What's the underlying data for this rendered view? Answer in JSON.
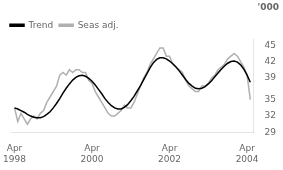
{
  "chart_data": {
    "type": "line",
    "ylabel": "'000",
    "x": [
      0,
      1,
      2,
      3,
      4,
      5,
      6,
      7,
      8,
      9,
      10,
      11,
      12,
      13,
      14,
      15,
      16,
      17,
      18,
      19,
      20,
      21,
      22,
      23,
      24,
      25,
      26,
      27,
      28,
      29,
      30,
      31,
      32,
      33,
      34,
      35,
      36,
      37,
      38,
      39,
      40,
      41,
      42,
      43,
      44,
      45,
      46,
      47,
      48,
      49,
      50,
      51,
      52,
      53,
      54,
      55,
      56,
      57,
      58,
      59,
      60,
      61,
      62,
      63,
      64,
      65,
      66,
      67,
      68,
      69,
      70,
      71,
      72,
      73
    ],
    "xlim": [
      -1,
      74
    ],
    "xticks": [
      {
        "value": 0,
        "label": "Apr\n1998"
      },
      {
        "value": 24,
        "label": "Apr\n2000"
      },
      {
        "value": 48,
        "label": "Apr\n2002"
      },
      {
        "value": 72,
        "label": "Apr\n2004"
      }
    ],
    "ylim": [
      29,
      46
    ],
    "yticks": [
      29,
      32,
      35,
      39,
      42,
      45
    ],
    "grid": false,
    "legend": "upper left",
    "series": [
      {
        "name": "Trend",
        "color": "#000000",
        "values": [
          33.5,
          33.3,
          33.0,
          32.7,
          32.3,
          32.0,
          31.8,
          31.7,
          31.7,
          31.9,
          32.3,
          32.8,
          33.5,
          34.3,
          35.2,
          36.2,
          37.1,
          37.9,
          38.6,
          39.1,
          39.4,
          39.5,
          39.3,
          38.9,
          38.4,
          37.7,
          36.9,
          36.1,
          35.2,
          34.5,
          33.9,
          33.5,
          33.3,
          33.3,
          33.6,
          34.1,
          34.8,
          35.6,
          36.6,
          37.6,
          38.7,
          39.8,
          40.9,
          41.8,
          42.4,
          42.7,
          42.7,
          42.5,
          42.1,
          41.6,
          41.0,
          40.3,
          39.5,
          38.7,
          38.0,
          37.5,
          37.1,
          37.0,
          37.1,
          37.4,
          37.9,
          38.5,
          39.2,
          39.9,
          40.6,
          41.2,
          41.7,
          42.0,
          42.1,
          41.9,
          41.4,
          40.6,
          39.5,
          38.2
        ]
      },
      {
        "name": "Seas adj.",
        "color": "#b0b0b0",
        "values": [
          33.5,
          31.0,
          32.5,
          31.5,
          30.5,
          31.5,
          32.0,
          31.5,
          32.5,
          33.0,
          34.5,
          35.5,
          36.5,
          37.5,
          39.5,
          40.0,
          39.5,
          40.5,
          40.0,
          40.5,
          40.5,
          40.0,
          40.0,
          38.5,
          38.0,
          36.5,
          35.5,
          34.5,
          33.5,
          32.5,
          32.0,
          32.0,
          32.5,
          33.0,
          34.0,
          33.5,
          33.5,
          34.5,
          36.0,
          37.5,
          39.0,
          40.0,
          41.5,
          42.5,
          43.5,
          44.5,
          44.5,
          43.0,
          43.0,
          41.5,
          41.0,
          40.5,
          40.0,
          38.5,
          37.5,
          37.0,
          36.5,
          36.5,
          37.5,
          37.5,
          38.0,
          39.0,
          39.5,
          40.5,
          41.0,
          41.5,
          42.5,
          43.0,
          43.5,
          43.0,
          42.0,
          41.0,
          39.5,
          35.0
        ]
      }
    ]
  }
}
